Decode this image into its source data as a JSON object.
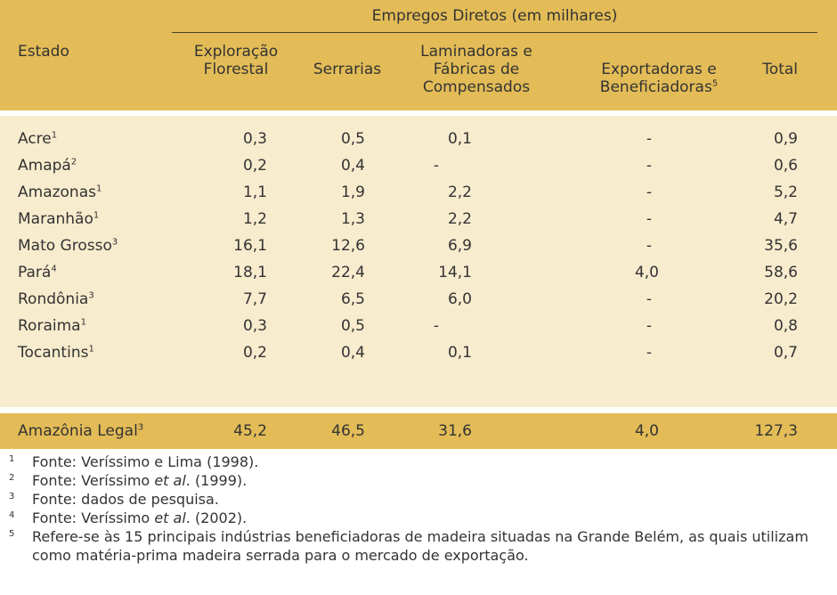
{
  "header": {
    "group_title": "Empregos Diretos (em milhares)",
    "estado": "Estado",
    "exploracao": [
      "Exploração",
      "Florestal"
    ],
    "serrarias": "Serrarias",
    "laminadoras": [
      "Laminadoras e",
      "Fábricas de",
      "Compensados"
    ],
    "exportadoras": [
      "Exportadoras e",
      "Beneficiadoras"
    ],
    "exportadoras_sup": "5",
    "total": "Total"
  },
  "rows": [
    {
      "state": "Acre",
      "sup": "1",
      "expl": "0,3",
      "serr": "0,5",
      "lam": "0,1",
      "exp": "-",
      "total": "0,9"
    },
    {
      "state": "Amapá",
      "sup": "2",
      "expl": "0,2",
      "serr": "0,4",
      "lam": "-",
      "exp": "-",
      "total": "0,6"
    },
    {
      "state": "Amazonas",
      "sup": "1",
      "expl": "1,1",
      "serr": "1,9",
      "lam": "2,2",
      "exp": "-",
      "total": "5,2"
    },
    {
      "state": "Maranhão",
      "sup": "1",
      "expl": "1,2",
      "serr": "1,3",
      "lam": "2,2",
      "exp": "-",
      "total": "4,7"
    },
    {
      "state": "Mato Grosso",
      "sup": "3",
      "expl": "16,1",
      "serr": "12,6",
      "lam": "6,9",
      "exp": "-",
      "total": "35,6"
    },
    {
      "state": "Pará",
      "sup": "4",
      "expl": "18,1",
      "serr": "22,4",
      "lam": "14,1",
      "exp": "4,0",
      "total": "58,6"
    },
    {
      "state": "Rondônia",
      "sup": "3",
      "expl": "7,7",
      "serr": "6,5",
      "lam": "6,0",
      "exp": "-",
      "total": "20,2"
    },
    {
      "state": "Roraima",
      "sup": "1",
      "expl": "0,3",
      "serr": "0,5",
      "lam": "-",
      "exp": "-",
      "total": "0,8"
    },
    {
      "state": "Tocantins",
      "sup": "1",
      "expl": "0,2",
      "serr": "0,4",
      "lam": "0,1",
      "exp": "-",
      "total": "0,7"
    }
  ],
  "total_row": {
    "state": "Amazônia Legal",
    "sup": "3",
    "expl": "45,2",
    "serr": "46,5",
    "lam": "31,6",
    "exp": "4,0",
    "total": "127,3"
  },
  "footnotes": [
    {
      "num": "1",
      "pre": "Fonte: Veríssimo e Lima (1998).",
      "em": "",
      "post": ""
    },
    {
      "num": "2",
      "pre": "Fonte: Veríssimo ",
      "em": "et al",
      "post": ". (1999)."
    },
    {
      "num": "3",
      "pre": "Fonte: dados de pesquisa.",
      "em": "",
      "post": ""
    },
    {
      "num": "4",
      "pre": "Fonte: Veríssimo ",
      "em": "et al",
      "post": ". (2002)."
    },
    {
      "num": "5",
      "pre": "Refere-se às 15 principais indústrias beneficiadoras de madeira situadas na Grande Belém, as quais utilizam como matéria-prima madeira serrada para o mercado de exportação.",
      "em": "",
      "post": ""
    }
  ],
  "colors": {
    "header_band": "#e3bc57",
    "body_band": "#f8ecce",
    "text": "#333333"
  }
}
